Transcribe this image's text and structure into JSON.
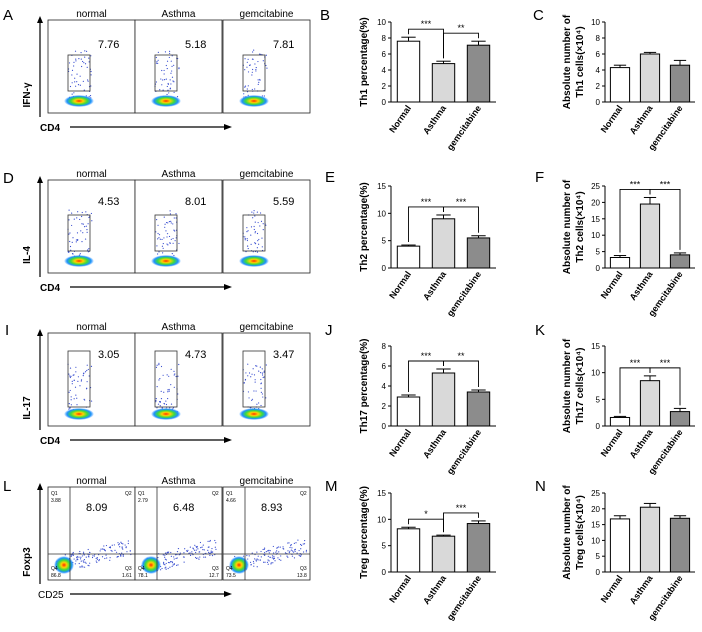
{
  "panel_letters": [
    "A",
    "B",
    "C",
    "D",
    "E",
    "F",
    "I",
    "J",
    "K",
    "L",
    "M",
    "N"
  ],
  "flow_rows": [
    {
      "letter": "A",
      "ylabel": "IFN-γ",
      "xlabel": "CD4",
      "samples": [
        "normal",
        "Asthma",
        "gemcitabine"
      ],
      "values": [
        "7.76",
        "5.18",
        "7.81"
      ]
    },
    {
      "letter": "D",
      "ylabel": "IL-4",
      "xlabel": "CD4",
      "samples": [
        "normal",
        "Asthma",
        "gemcitabine"
      ],
      "values": [
        "4.53",
        "8.01",
        "5.59"
      ]
    },
    {
      "letter": "I",
      "ylabel": "IL-17",
      "xlabel": "CD4",
      "samples": [
        "normal",
        "Asthma",
        "gemcitabine"
      ],
      "values": [
        "3.05",
        "4.73",
        "3.47"
      ]
    },
    {
      "letter": "L",
      "ylabel": "Foxp3",
      "xlabel": "CD25",
      "samples": [
        "normal",
        "Asthma",
        "gemcitabine"
      ],
      "values": [
        "8.09",
        "6.48",
        "8.93"
      ],
      "quadrants": [
        {
          "Q1": "Q1",
          "Q1v": "3.88",
          "Q2": "Q2",
          "Q4": "Q4",
          "Q4v": "86.8",
          "Q3": "Q3",
          "Q3v": "1.61"
        },
        {
          "Q1": "Q1",
          "Q1v": "2.79",
          "Q2": "Q2",
          "Q4": "Q4",
          "Q4v": "78.1",
          "Q3": "Q3",
          "Q3v": "12.7"
        },
        {
          "Q1": "Q1",
          "Q1v": "4.66",
          "Q2": "Q2",
          "Q4": "Q4",
          "Q4v": "73.5",
          "Q3": "Q3",
          "Q3v": "13.8"
        }
      ]
    }
  ],
  "chart_data": [
    {
      "type": "bar",
      "letter": "B",
      "categories": [
        "Normal",
        "Asthma",
        "gemcitabine"
      ],
      "values": [
        7.6,
        4.8,
        7.1
      ],
      "errors": [
        0.5,
        0.3,
        0.5
      ],
      "ylabel": "Th1 percentage(%)",
      "ylim": [
        0,
        10
      ],
      "ticks": [
        "0",
        "2",
        "4",
        "6",
        "8",
        "10"
      ],
      "colors": [
        "#ffffff",
        "#d9d9d9",
        "#8c8c8c"
      ],
      "sig": [
        {
          "from": 0,
          "to": 1,
          "label": "***"
        },
        {
          "from": 1,
          "to": 2,
          "label": "**"
        }
      ]
    },
    {
      "type": "bar",
      "letter": "C",
      "categories": [
        "Normal",
        "Asthma",
        "gemcitabine"
      ],
      "values": [
        4.3,
        6.0,
        4.6
      ],
      "errors": [
        0.3,
        0.2,
        0.6
      ],
      "ylabel": "Absolute number of Th1 cells(×10⁴)",
      "ylim": [
        0,
        10
      ],
      "ticks": [
        "0",
        "2",
        "4",
        "6",
        "8",
        "10"
      ],
      "colors": [
        "#ffffff",
        "#d9d9d9",
        "#8c8c8c"
      ],
      "sig": []
    },
    {
      "type": "bar",
      "letter": "E",
      "categories": [
        "Normal",
        "Asthma",
        "gemcitabine"
      ],
      "values": [
        4.0,
        9.0,
        5.5
      ],
      "errors": [
        0.2,
        0.7,
        0.4
      ],
      "ylabel": "Th2 percentage(%)",
      "ylim": [
        0,
        15
      ],
      "ticks": [
        "0",
        "5",
        "10",
        "15"
      ],
      "colors": [
        "#ffffff",
        "#d9d9d9",
        "#8c8c8c"
      ],
      "sig": [
        {
          "from": 0,
          "to": 1,
          "label": "***"
        },
        {
          "from": 1,
          "to": 2,
          "label": "***"
        }
      ]
    },
    {
      "type": "bar",
      "letter": "F",
      "categories": [
        "Normal",
        "Asthma",
        "gemcitabine"
      ],
      "values": [
        3.2,
        19.5,
        4.0
      ],
      "errors": [
        0.6,
        2.0,
        0.6
      ],
      "ylabel": "Absolute number of Th2 cells(×10⁴)",
      "ylim": [
        0,
        25
      ],
      "ticks": [
        "0",
        "5",
        "10",
        "15",
        "20",
        "25"
      ],
      "colors": [
        "#ffffff",
        "#d9d9d9",
        "#8c8c8c"
      ],
      "sig": [
        {
          "from": 0,
          "to": 1,
          "label": "***"
        },
        {
          "from": 1,
          "to": 2,
          "label": "***"
        }
      ]
    },
    {
      "type": "bar",
      "letter": "J",
      "categories": [
        "Normal",
        "Asthma",
        "gemcitabine"
      ],
      "values": [
        2.9,
        5.3,
        3.4
      ],
      "errors": [
        0.2,
        0.4,
        0.2
      ],
      "ylabel": "Th17 percentage(%)",
      "ylim": [
        0,
        8
      ],
      "ticks": [
        "0",
        "2",
        "4",
        "6",
        "8"
      ],
      "colors": [
        "#ffffff",
        "#d9d9d9",
        "#8c8c8c"
      ],
      "sig": [
        {
          "from": 0,
          "to": 1,
          "label": "***"
        },
        {
          "from": 1,
          "to": 2,
          "label": "**"
        }
      ]
    },
    {
      "type": "bar",
      "letter": "K",
      "categories": [
        "Normal",
        "Asthma",
        "gemcitabine"
      ],
      "values": [
        1.6,
        8.5,
        2.7
      ],
      "errors": [
        0.2,
        0.9,
        0.6
      ],
      "ylabel": "Absolute number of Th17 cells(×10⁴)",
      "ylim": [
        0,
        15
      ],
      "ticks": [
        "0",
        "5",
        "10",
        "15"
      ],
      "colors": [
        "#ffffff",
        "#d9d9d9",
        "#8c8c8c"
      ],
      "sig": [
        {
          "from": 0,
          "to": 1,
          "label": "***"
        },
        {
          "from": 1,
          "to": 2,
          "label": "***"
        }
      ]
    },
    {
      "type": "bar",
      "letter": "M",
      "categories": [
        "Normal",
        "Asthma",
        "gemcitabine"
      ],
      "values": [
        8.2,
        6.8,
        9.2
      ],
      "errors": [
        0.3,
        0.2,
        0.5
      ],
      "ylabel": "Treg percentage(%)",
      "ylim": [
        0,
        15
      ],
      "ticks": [
        "0",
        "5",
        "10",
        "15"
      ],
      "colors": [
        "#ffffff",
        "#d9d9d9",
        "#8c8c8c"
      ],
      "sig": [
        {
          "from": 0,
          "to": 1,
          "label": "*"
        },
        {
          "from": 1,
          "to": 2,
          "label": "***"
        }
      ]
    },
    {
      "type": "bar",
      "letter": "N",
      "categories": [
        "Normal",
        "Asthma",
        "gemcitabine"
      ],
      "values": [
        16.8,
        20.5,
        17.0
      ],
      "errors": [
        1.0,
        1.2,
        0.8
      ],
      "ylabel": "Absolute number of Treg cells(×10⁴)",
      "ylim": [
        0,
        25
      ],
      "ticks": [
        "0",
        "5",
        "10",
        "15",
        "20",
        "25"
      ],
      "colors": [
        "#ffffff",
        "#d9d9d9",
        "#8c8c8c"
      ],
      "sig": []
    }
  ]
}
